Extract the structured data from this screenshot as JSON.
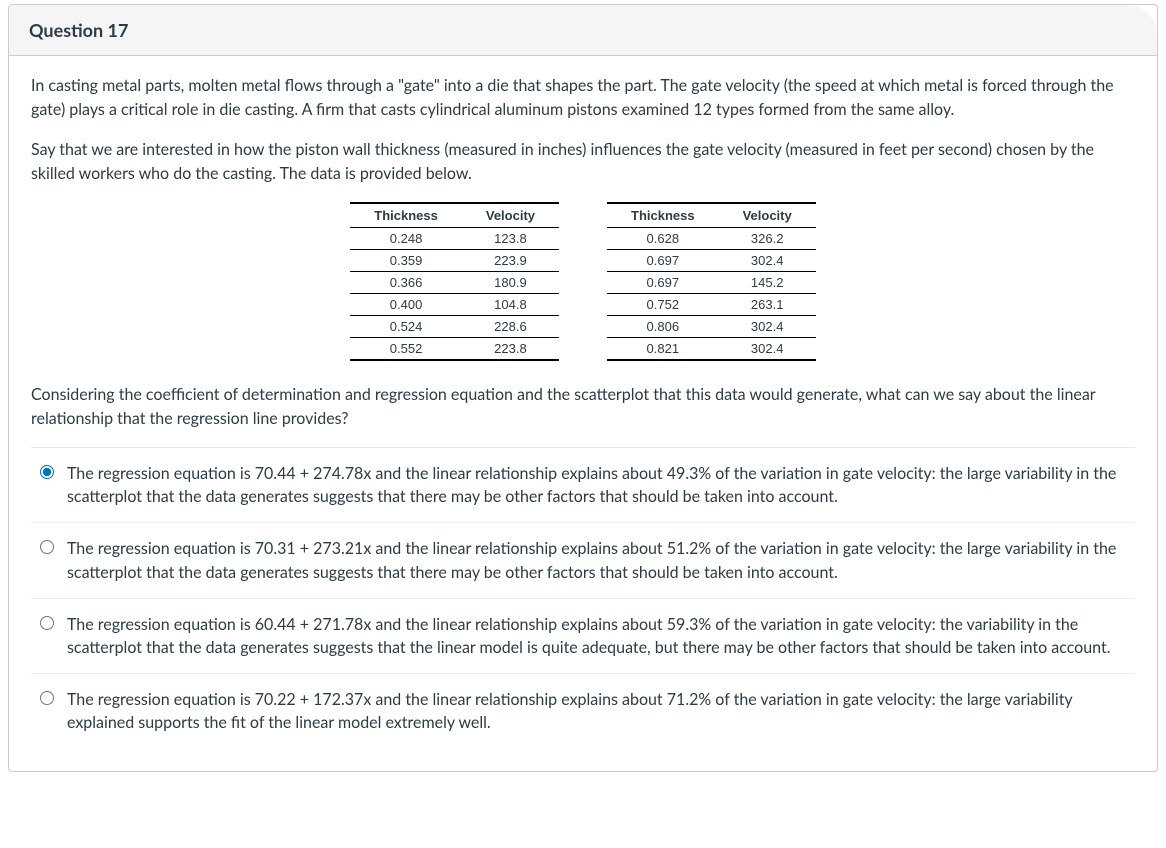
{
  "header": {
    "title": "Question 17"
  },
  "prompt": {
    "p1": "In casting metal parts, molten metal flows through a \"gate\" into a die that shapes the part. The gate velocity (the speed at which metal is forced through the gate) plays a critical role in die casting. A firm that casts cylindrical aluminum pistons examined 12 types formed from the same alloy.",
    "p2": "Say that we are interested in how the piston wall thickness (measured in inches) influences the gate velocity (measured in feet per second) chosen by the skilled workers who do the casting. The data is provided below.",
    "p3": "Considering the coefficient of determination and regression equation and the scatterplot that this data would generate, what can we say about the linear relationship that the regression line provides?"
  },
  "table": {
    "columns": [
      "Thickness",
      "Velocity",
      "Thickness",
      "Velocity"
    ],
    "rows": [
      [
        "0.248",
        "123.8",
        "0.628",
        "326.2"
      ],
      [
        "0.359",
        "223.9",
        "0.697",
        "302.4"
      ],
      [
        "0.366",
        "180.9",
        "0.697",
        "145.2"
      ],
      [
        "0.400",
        "104.8",
        "0.752",
        "263.1"
      ],
      [
        "0.524",
        "228.6",
        "0.806",
        "302.4"
      ],
      [
        "0.552",
        "223.8",
        "0.821",
        "302.4"
      ]
    ],
    "header_font_size": 13,
    "cell_font_size": 13,
    "border_color": "#000000"
  },
  "answers": {
    "selected_index": 0,
    "options": [
      "The regression equation is 70.44 + 274.78x and the linear relationship explains about 49.3% of the variation in gate velocity: the large variability in the scatterplot that the data generates suggests that there may be other factors that should be taken into account.",
      "The regression equation is 70.31 + 273.21x and the linear relationship explains about 51.2% of the variation in gate velocity: the large variability in the scatterplot that the data generates suggests that there may be other factors that should be taken into account.",
      "The regression equation is 60.44 + 271.78x and the linear relationship explains about 59.3% of the variation in gate velocity: the variability in the scatterplot that the data generates suggests that the linear model is quite adequate, but there may be other factors that should be taken into account.",
      "The regression equation is 70.22 + 172.37x and the linear relationship explains about 71.2% of the variation in gate velocity: the large variability explained supports the fit of the linear model extremely well."
    ]
  },
  "colors": {
    "card_border": "#c7cdd1",
    "header_bg": "#f5f5f5",
    "text": "#2d3b45",
    "accent": "#0374b5",
    "divider": "#eeeeee"
  }
}
